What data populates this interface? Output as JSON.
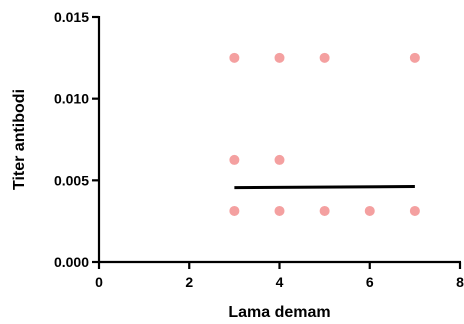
{
  "chart_data": {
    "type": "scatter",
    "title": "",
    "xlabel": "Lama demam",
    "ylabel": "Titer antibodi",
    "xlim": [
      0,
      8
    ],
    "ylim": [
      0,
      0.015
    ],
    "x_ticks": [
      "0",
      "2",
      "4",
      "6",
      "8"
    ],
    "y_ticks": [
      "0.000",
      "0.005",
      "0.010",
      "0.015"
    ],
    "grid": false,
    "legend": "none",
    "point_color": "#f4a0a0",
    "line_color": "#000000",
    "points": [
      {
        "x": 3,
        "y": 0.0125
      },
      {
        "x": 4,
        "y": 0.0125
      },
      {
        "x": 5,
        "y": 0.0125
      },
      {
        "x": 7,
        "y": 0.0125
      },
      {
        "x": 3,
        "y": 0.00625
      },
      {
        "x": 4,
        "y": 0.00625
      },
      {
        "x": 3,
        "y": 0.003125
      },
      {
        "x": 4,
        "y": 0.003125
      },
      {
        "x": 5,
        "y": 0.003125
      },
      {
        "x": 6,
        "y": 0.003125
      },
      {
        "x": 7,
        "y": 0.003125
      }
    ],
    "trend_line": {
      "x": [
        3,
        7
      ],
      "y": [
        0.00455,
        0.00462
      ]
    }
  }
}
